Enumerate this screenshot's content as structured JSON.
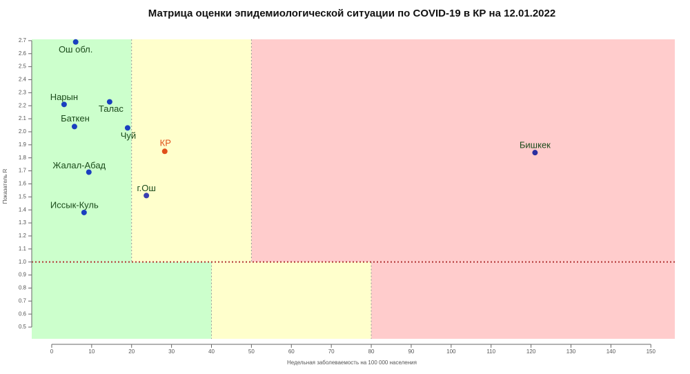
{
  "chart_data": {
    "type": "scatter",
    "title": "Матрица оценки эпидемиологической ситуации по COVID-19 в КР на 12.01.2022",
    "x_label": "Недельная заболеваемость на 100 000 населения",
    "y_label": "Показатель R",
    "xlim": [
      -5,
      156
    ],
    "ylim": [
      0.41,
      2.71
    ],
    "xticks": [
      0,
      10,
      20,
      30,
      40,
      50,
      60,
      70,
      80,
      90,
      100,
      110,
      120,
      130,
      140,
      150
    ],
    "yticks": [
      0.5,
      0.6,
      0.7,
      0.8,
      0.9,
      {
        "value": 1,
        "label": "1.0"
      },
      1.1,
      1.2,
      1.3,
      1.4,
      1.5,
      1.6,
      1.7,
      1.8,
      1.9,
      {
        "value": 2,
        "label": "2.0"
      },
      2.1,
      2.2,
      2.3,
      2.4,
      2.5,
      2.6,
      2.7
    ],
    "threshold": 1,
    "threshold_color": "#b03030",
    "upper_bounds": [
      20,
      50
    ],
    "lower_bounds": [
      40,
      80
    ],
    "zone_colors": [
      "#ccffcc",
      "#ffffcc",
      "#ffcccc"
    ],
    "names": [
      "Ош обл.",
      "Нарын",
      "Талас",
      "Баткен",
      "Чуй",
      "КР",
      "Бишкек",
      "Жалал-Абад",
      "г.Ош",
      "Иссык-Куль"
    ],
    "x": [
      6.0,
      3.1,
      14.5,
      5.7,
      19.0,
      28.3,
      121.0,
      9.3,
      23.7,
      8.1
    ],
    "y": [
      2.69,
      2.21,
      2.23,
      2.04,
      2.03,
      1.85,
      1.84,
      1.69,
      1.51,
      1.38
    ],
    "colors": [
      "#1a3fbf",
      "#1a3fbf",
      "#1a3fbf",
      "#1a3fbf",
      "#1a3fbf",
      "#e0501a",
      "#2a2fa0",
      "#1a3fbf",
      "#3a3fb0",
      "#1a3fbf"
    ]
  }
}
